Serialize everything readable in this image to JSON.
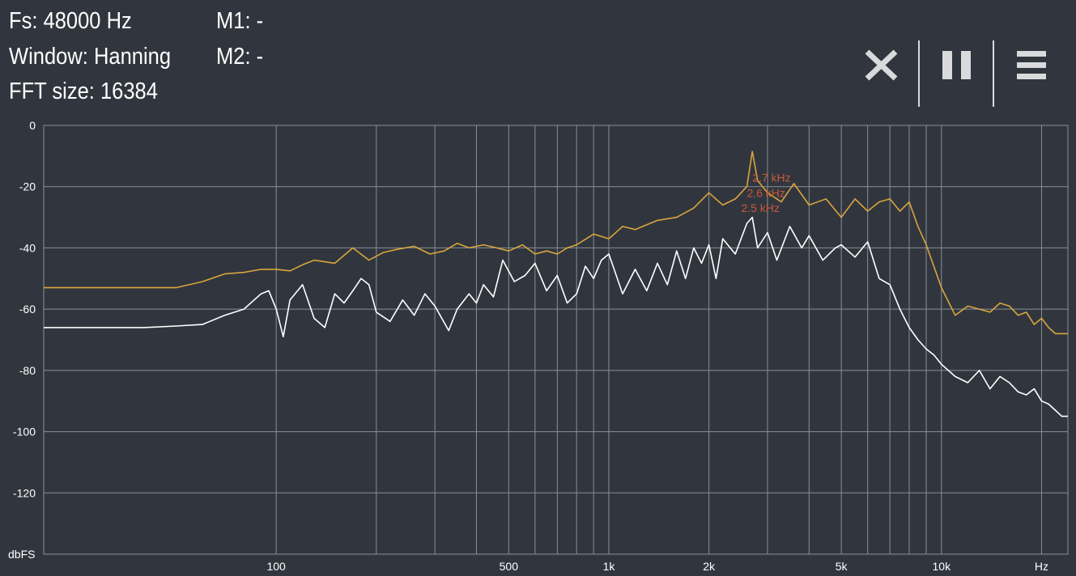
{
  "info": {
    "fs": "Fs: 48000 Hz",
    "window": "Window: Hanning",
    "fft_size": "FFT size: 16384",
    "m1": "M1: -",
    "m2": "M2: -"
  },
  "toolbar": {
    "close_icon": "close-icon",
    "pause_icon": "pause-icon",
    "menu_icon": "menu-icon"
  },
  "colors": {
    "background": "#31363e",
    "grid": "#8a8f96",
    "peak_series": "#d9a53d",
    "live_series": "#ffffff",
    "marker_text": "#c85a3a"
  },
  "chart_data": {
    "type": "line",
    "xscale": "log",
    "xlim": [
      20,
      24000
    ],
    "ylim": [
      -140,
      0
    ],
    "xlabel": "Hz",
    "ylabel": "dbFS",
    "x_ticks": [
      {
        "value": 100,
        "label": "100"
      },
      {
        "value": 500,
        "label": "500"
      },
      {
        "value": 1000,
        "label": "1k"
      },
      {
        "value": 2000,
        "label": "2k"
      },
      {
        "value": 5000,
        "label": "5k"
      },
      {
        "value": 10000,
        "label": "10k"
      },
      {
        "value": 20000,
        "label": "Hz"
      }
    ],
    "x_gridlines": [
      100,
      200,
      300,
      400,
      500,
      600,
      700,
      800,
      900,
      1000,
      2000,
      3000,
      4000,
      5000,
      6000,
      7000,
      8000,
      9000,
      10000,
      20000
    ],
    "y_ticks": [
      {
        "value": 0,
        "label": "0"
      },
      {
        "value": -20,
        "label": "-20"
      },
      {
        "value": -40,
        "label": "-40"
      },
      {
        "value": -60,
        "label": "-60"
      },
      {
        "value": -80,
        "label": "-80"
      },
      {
        "value": -100,
        "label": "-100"
      },
      {
        "value": -120,
        "label": "-120"
      }
    ],
    "grid": true,
    "markers": [
      {
        "x": 2700,
        "y": -17,
        "label": "2.7 kHz"
      },
      {
        "x": 2600,
        "y": -22,
        "label": "2.6 kHz"
      },
      {
        "x": 2500,
        "y": -27,
        "label": "2.5 kHz"
      }
    ],
    "series": [
      {
        "color": "#d9a53d",
        "x": [
          20,
          30,
          40,
          50,
          60,
          70,
          80,
          90,
          100,
          110,
          120,
          130,
          150,
          170,
          190,
          210,
          230,
          260,
          290,
          320,
          350,
          380,
          420,
          460,
          500,
          550,
          600,
          650,
          700,
          750,
          800,
          900,
          1000,
          1100,
          1200,
          1400,
          1600,
          1800,
          2000,
          2200,
          2400,
          2600,
          2700,
          2800,
          3000,
          3300,
          3600,
          4000,
          4500,
          5000,
          5500,
          6000,
          6500,
          7000,
          7500,
          8000,
          8500,
          9000,
          10000,
          11000,
          12000,
          13000,
          14000,
          15000,
          16000,
          17000,
          18000,
          19000,
          20000,
          21000,
          22000,
          23000,
          24000
        ],
        "y": [
          -53,
          -53,
          -53,
          -53,
          -51,
          -48.5,
          -48,
          -47,
          -47,
          -47.5,
          -45.5,
          -44,
          -45,
          -40,
          -44,
          -41.5,
          -40.5,
          -39.5,
          -42,
          -41,
          -38.5,
          -40,
          -39,
          -40,
          -41,
          -39,
          -42,
          -41,
          -42,
          -40,
          -39,
          -35.5,
          -37,
          -33,
          -34,
          -31,
          -30,
          -27,
          -22,
          -26,
          -24,
          -20,
          -8.5,
          -18,
          -22,
          -25,
          -19,
          -26,
          -24,
          -30,
          -24,
          -28,
          -25,
          -24,
          -28,
          -25,
          -33,
          -39,
          -53,
          -62,
          -59,
          -60,
          -61,
          -58,
          -59,
          -62,
          -61,
          -65,
          -63,
          -66,
          -68,
          -68,
          -68
        ]
      },
      {
        "color": "#ffffff",
        "x": [
          20,
          30,
          40,
          50,
          60,
          70,
          80,
          90,
          95,
          100,
          105,
          110,
          120,
          130,
          140,
          150,
          160,
          170,
          180,
          190,
          200,
          220,
          240,
          260,
          280,
          300,
          330,
          350,
          380,
          400,
          420,
          450,
          480,
          520,
          560,
          600,
          650,
          700,
          750,
          800,
          850,
          900,
          950,
          1000,
          1100,
          1200,
          1300,
          1400,
          1500,
          1600,
          1700,
          1800,
          1900,
          2000,
          2100,
          2200,
          2400,
          2600,
          2700,
          2800,
          3000,
          3200,
          3500,
          3800,
          4000,
          4400,
          4800,
          5000,
          5500,
          6000,
          6500,
          7000,
          7500,
          8000,
          8500,
          9000,
          9500,
          10000,
          11000,
          12000,
          13000,
          14000,
          15000,
          16000,
          17000,
          18000,
          19000,
          20000,
          21000,
          22000,
          23000,
          24000
        ],
        "y": [
          -66,
          -66,
          -66,
          -65.5,
          -65,
          -62,
          -60,
          -55,
          -54,
          -60,
          -69,
          -57,
          -52,
          -63,
          -66,
          -55,
          -58,
          -54,
          -50,
          -52,
          -61,
          -64,
          -57,
          -62,
          -55,
          -59,
          -67,
          -60,
          -55,
          -58,
          -52,
          -56,
          -44,
          -51,
          -49,
          -45,
          -54,
          -49,
          -58,
          -55,
          -46,
          -50,
          -44,
          -42,
          -55,
          -47,
          -54,
          -45,
          -52,
          -41,
          -50,
          -40,
          -45,
          -39,
          -50,
          -37,
          -42,
          -32,
          -30,
          -40,
          -35,
          -44,
          -33,
          -40,
          -36,
          -44,
          -40,
          -39,
          -43,
          -38,
          -50,
          -52,
          -60,
          -66,
          -70,
          -73,
          -75,
          -78,
          -82,
          -84,
          -80,
          -86,
          -82,
          -84,
          -87,
          -88,
          -86,
          -90,
          -91,
          -93,
          -95,
          -95
        ]
      }
    ]
  }
}
